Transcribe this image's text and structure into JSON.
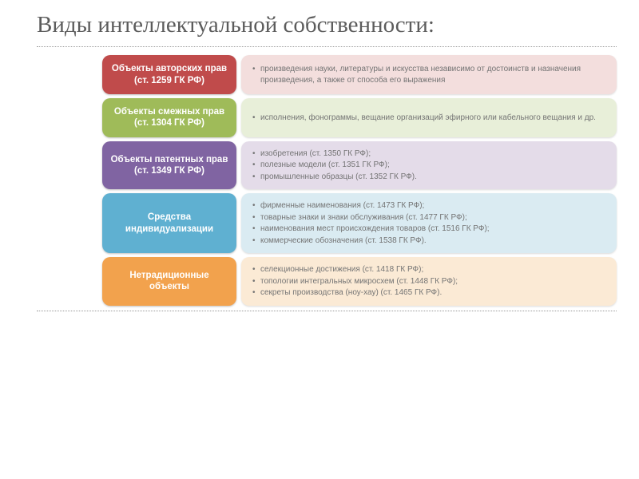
{
  "title": "Виды интеллектуальной собственности:",
  "title_color": "#5c5c5c",
  "rows": [
    {
      "label": "Объекты авторских прав (ст. 1259 ГК РФ)",
      "cat_bg": "#c04b4b",
      "desc_bg": "#f3dedd",
      "items": [
        "произведения науки, литературы и искусства независимо от достоинств и назначения произведения, а также от способа его выражения"
      ]
    },
    {
      "label": "Объекты смежных прав (ст. 1304 ГК РФ)",
      "cat_bg": "#9fbb59",
      "desc_bg": "#e8efd9",
      "items": [
        "исполнения, фонограммы, вещание организаций эфирного или кабельного вещания и др."
      ]
    },
    {
      "label": "Объекты патентных прав (ст. 1349 ГК РФ)",
      "cat_bg": "#8064a2",
      "desc_bg": "#e4dce9",
      "items": [
        "изобретения (ст. 1350 ГК РФ);",
        "полезные модели (ст. 1351 ГК РФ);",
        "промышленные образцы (ст. 1352 ГК РФ)."
      ]
    },
    {
      "label": "Средства индивидуализации",
      "cat_bg": "#5fb0d1",
      "desc_bg": "#daebf2",
      "items": [
        "фирменные наименования (ст. 1473 ГК РФ);",
        "товарные знаки и знаки обслуживания (ст. 1477 ГК РФ);",
        "наименования мест происхождения товаров (ст. 1516 ГК РФ);",
        "коммерческие обозначения (ст. 1538 ГК РФ)."
      ]
    },
    {
      "label": "Нетрадиционные объекты",
      "cat_bg": "#f2a24d",
      "desc_bg": "#fbead5",
      "items": [
        "селекционные достижения (ст. 1418 ГК РФ);",
        "топологии интегральных микросхем (ст. 1448 ГК РФ);",
        "секреты производства (ноу-хау) (ст. 1465 ГК РФ)."
      ]
    }
  ]
}
